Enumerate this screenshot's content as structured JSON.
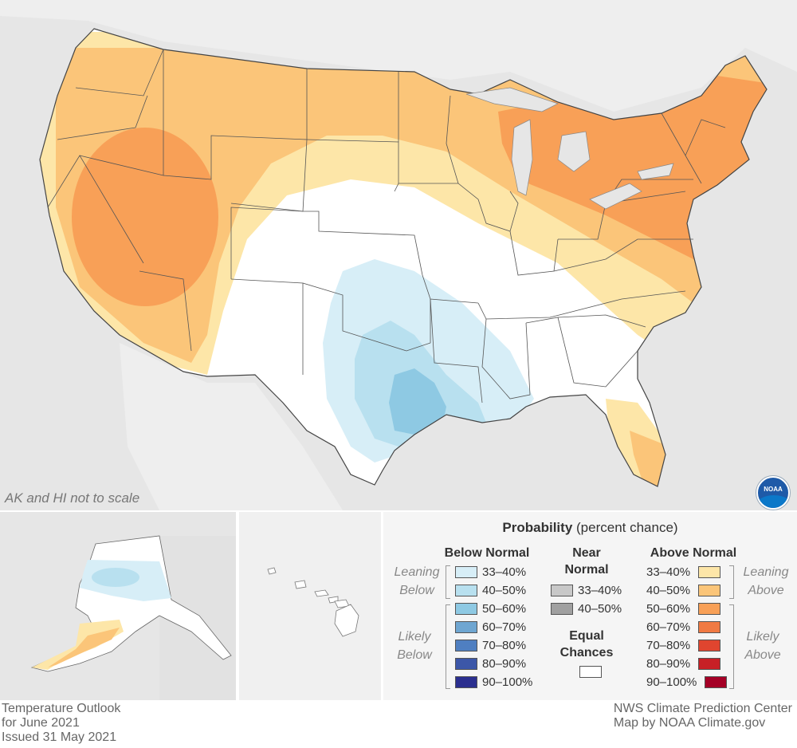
{
  "map": {
    "scale_note": "AK and HI not to scale",
    "logo_text": "NOAA",
    "colors": {
      "background": "#e6e6e6",
      "land": "#ffffff",
      "border": "#444444"
    }
  },
  "legend": {
    "title_bold": "Probability",
    "title_rest": " (percent chance)",
    "below_normal": {
      "heading": "Below Normal",
      "leaning_label": "Leaning Below",
      "likely_label": "Likely Below",
      "bins": [
        {
          "label": "33–40%",
          "color": "#d7eef7"
        },
        {
          "label": "40–50%",
          "color": "#b8e0ef"
        },
        {
          "label": "50–60%",
          "color": "#8ec9e3"
        },
        {
          "label": "60–70%",
          "color": "#6fa6d1"
        },
        {
          "label": "70–80%",
          "color": "#4f7fc1"
        },
        {
          "label": "80–90%",
          "color": "#3c57a8"
        },
        {
          "label": "90–100%",
          "color": "#2b2f8f"
        }
      ]
    },
    "near_normal": {
      "heading_line1": "Near",
      "heading_line2": "Normal",
      "bins": [
        {
          "label": "33–40%",
          "color": "#c8c8c8"
        },
        {
          "label": "40–50%",
          "color": "#a0a0a0"
        }
      ]
    },
    "equal_chances": {
      "line1": "Equal",
      "line2": "Chances",
      "color": "#ffffff"
    },
    "above_normal": {
      "heading": "Above Normal",
      "leaning_label": "Leaning Above",
      "likely_label": "Likely Above",
      "bins": [
        {
          "label": "33–40%",
          "color": "#fde6a8"
        },
        {
          "label": "40–50%",
          "color": "#fbc579"
        },
        {
          "label": "50–60%",
          "color": "#f8a057"
        },
        {
          "label": "60–70%",
          "color": "#f07a43"
        },
        {
          "label": "70–80%",
          "color": "#e0452f"
        },
        {
          "label": "80–90%",
          "color": "#c72026"
        },
        {
          "label": "90–100%",
          "color": "#a50026"
        }
      ]
    }
  },
  "footer": {
    "left_line1": "Temperature Outlook",
    "left_line2": "for June 2021",
    "left_line3": "Issued 31 May 2021",
    "right_line1": "NWS Climate Prediction Center",
    "right_line2": "Map by NOAA Climate.gov"
  }
}
